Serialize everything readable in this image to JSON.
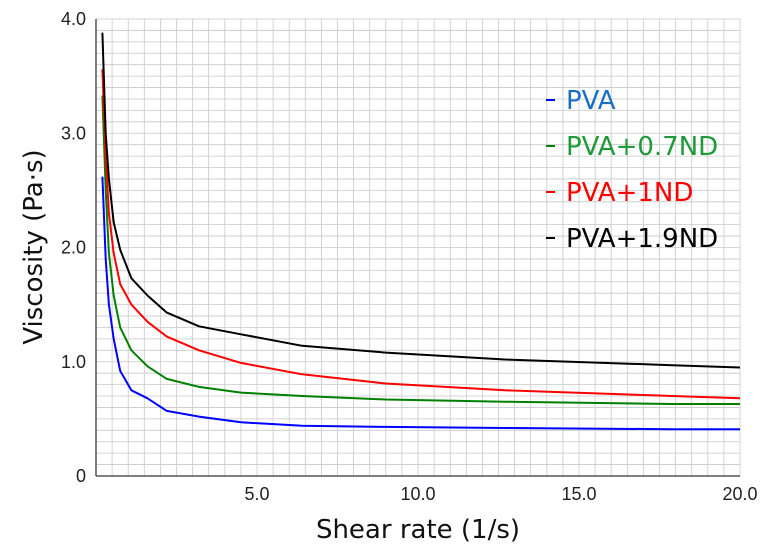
{
  "chart_data": {
    "type": "line",
    "title": "",
    "xlabel": "Shear rate (1/s)",
    "ylabel": "Viscosity (Pa·s)",
    "xlim": [
      0,
      20
    ],
    "ylim": [
      0,
      4
    ],
    "xticks": [
      {
        "value": 5,
        "label": "5.0"
      },
      {
        "value": 10,
        "label": "10.0"
      },
      {
        "value": 15,
        "label": "15.0"
      },
      {
        "value": 20,
        "label": "20.0"
      }
    ],
    "yticks": [
      {
        "value": 0,
        "label": "0"
      },
      {
        "value": 1,
        "label": "1.0"
      },
      {
        "value": 2,
        "label": "2.0"
      },
      {
        "value": 3,
        "label": "3.0"
      },
      {
        "value": 4,
        "label": "4.0"
      }
    ],
    "x_minor_step": 0.5,
    "y_minor_step": 0.1,
    "grid": true,
    "legend_position": "top-right",
    "series": [
      {
        "name": "PVA",
        "color": "#0000ff",
        "legend_text_color": "#1a6fc4",
        "x": [
          0.2,
          0.3,
          0.4,
          0.55,
          0.75,
          1.1,
          1.6,
          2.2,
          3.2,
          4.5,
          6.4,
          9.0,
          12.7,
          17.9,
          20.0
        ],
        "y": [
          2.62,
          1.9,
          1.5,
          1.2,
          0.92,
          0.75,
          0.68,
          0.57,
          0.52,
          0.47,
          0.44,
          0.43,
          0.42,
          0.41,
          0.41
        ]
      },
      {
        "name": "PVA+0.7ND",
        "color": "#008000",
        "legend_text_color": "#1f9a3a",
        "x": [
          0.2,
          0.3,
          0.4,
          0.55,
          0.75,
          1.1,
          1.6,
          2.2,
          3.2,
          4.5,
          6.4,
          9.0,
          12.7,
          17.9,
          20.0
        ],
        "y": [
          3.33,
          2.5,
          1.95,
          1.58,
          1.3,
          1.1,
          0.96,
          0.85,
          0.78,
          0.73,
          0.7,
          0.67,
          0.65,
          0.63,
          0.63
        ]
      },
      {
        "name": "PVA+1ND",
        "color": "#ff0000",
        "legend_text_color": "#ff0000",
        "x": [
          0.2,
          0.3,
          0.4,
          0.55,
          0.75,
          1.1,
          1.6,
          2.2,
          3.2,
          4.5,
          6.4,
          9.0,
          12.7,
          17.9,
          20.0
        ],
        "y": [
          3.56,
          2.8,
          2.3,
          1.95,
          1.68,
          1.5,
          1.35,
          1.22,
          1.1,
          0.99,
          0.89,
          0.81,
          0.75,
          0.7,
          0.68
        ]
      },
      {
        "name": "PVA+1.9ND",
        "color": "#000000",
        "legend_text_color": "#000000",
        "x": [
          0.2,
          0.3,
          0.4,
          0.55,
          0.75,
          1.1,
          1.6,
          2.2,
          3.2,
          4.5,
          6.4,
          9.0,
          12.7,
          17.9,
          20.0
        ],
        "y": [
          3.88,
          3.0,
          2.6,
          2.22,
          1.98,
          1.73,
          1.58,
          1.43,
          1.31,
          1.24,
          1.14,
          1.08,
          1.02,
          0.97,
          0.95
        ]
      }
    ]
  }
}
